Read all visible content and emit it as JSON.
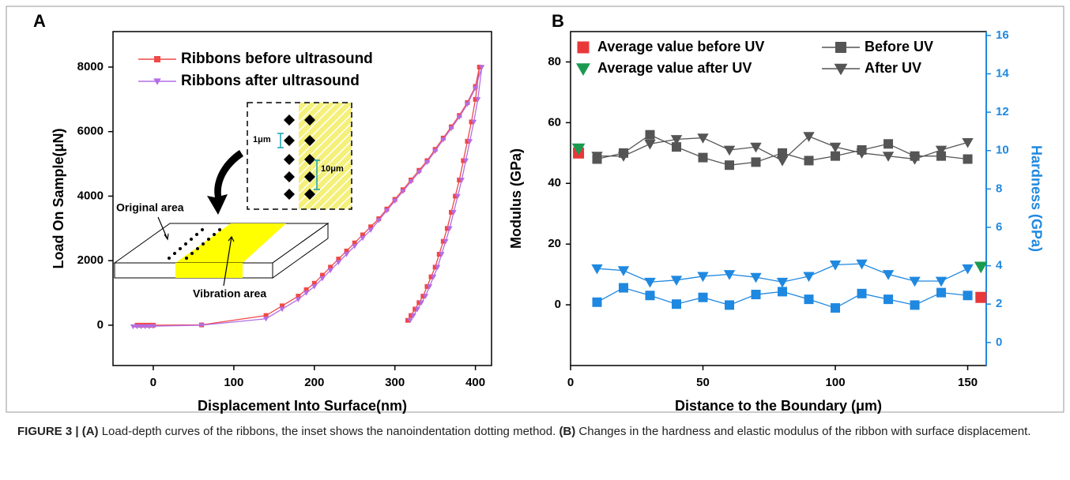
{
  "caption": [
    {
      "text": "FIGURE 3 | (A)",
      "bold": true
    },
    {
      "text": " Load-depth curves of the ribbons, the inset shows the nanoindentation dotting method. "
    },
    {
      "text": "(B)",
      "bold": true
    },
    {
      "text": " Changes in the hardness and elastic modulus of the ribbon with surface displacement."
    }
  ],
  "chart_data": [
    {
      "panel": "A",
      "type": "line",
      "xlabel": "Displacement Into Surface(nm)",
      "ylabel": "Load On Sample(μN)",
      "xlim": [
        -50,
        420
      ],
      "xticks": [
        0,
        100,
        200,
        300,
        400
      ],
      "ylim": [
        -1250,
        9100
      ],
      "yticks": [
        0,
        2000,
        4000,
        6000,
        8000
      ],
      "legend": "upper left",
      "legend_columns": 1,
      "series": [
        {
          "name": "Ribbons before ultrasound",
          "color": "#f04848",
          "marker": "square",
          "x": [
            -20,
            -15,
            -10,
            -5,
            0,
            60,
            140,
            160,
            180,
            190,
            200,
            210,
            220,
            230,
            240,
            250,
            260,
            270,
            280,
            290,
            300,
            310,
            320,
            330,
            340,
            350,
            360,
            370,
            380,
            390,
            400,
            405,
            400,
            395,
            390,
            385,
            380,
            375,
            370,
            365,
            360,
            355,
            350,
            345,
            340,
            335,
            330,
            325,
            320,
            316
          ],
          "values": [
            0,
            0,
            0,
            0,
            0,
            10,
            300,
            600,
            900,
            1100,
            1300,
            1550,
            1800,
            2050,
            2300,
            2550,
            2800,
            3050,
            3300,
            3600,
            3900,
            4200,
            4500,
            4800,
            5100,
            5450,
            5800,
            6150,
            6500,
            6900,
            7400,
            8000,
            7000,
            6300,
            5700,
            5100,
            4500,
            4000,
            3500,
            3000,
            2600,
            2200,
            1800,
            1500,
            1200,
            900,
            700,
            500,
            300,
            150
          ]
        },
        {
          "name": "Ribbons after ultrasound",
          "color": "#b36ee6",
          "marker": "triangle-down",
          "x": [
            -25,
            -20,
            -15,
            -10,
            -5,
            0,
            60,
            140,
            160,
            180,
            190,
            200,
            210,
            220,
            230,
            240,
            250,
            260,
            270,
            280,
            290,
            300,
            310,
            320,
            330,
            340,
            350,
            360,
            370,
            380,
            390,
            400,
            408,
            403,
            398,
            393,
            388,
            383,
            378,
            373,
            368,
            363,
            358,
            353,
            348,
            343,
            338,
            333,
            328,
            323,
            319
          ],
          "values": [
            -40,
            -40,
            -40,
            -40,
            -40,
            -30,
            0,
            200,
            500,
            800,
            1000,
            1200,
            1450,
            1700,
            1950,
            2200,
            2450,
            2700,
            2950,
            3250,
            3550,
            3850,
            4150,
            4450,
            4750,
            5050,
            5400,
            5750,
            6100,
            6450,
            6850,
            7350,
            8000,
            7000,
            6300,
            5700,
            5100,
            4500,
            4000,
            3500,
            3000,
            2600,
            2200,
            1800,
            1500,
            1200,
            900,
            700,
            500,
            300,
            150
          ]
        }
      ],
      "annotations": [
        "1μm",
        "10μm",
        "Original area",
        "Vibration area"
      ]
    },
    {
      "panel": "B",
      "type": "line",
      "xlabel": "Distance to the Boundary (μm)",
      "ylabel": "Modulus (GPa)",
      "y2label": "Hardness (GPa)",
      "y2color": "#1f88e0",
      "xlim": [
        0,
        157
      ],
      "xticks": [
        0,
        50,
        100,
        150
      ],
      "ylim": [
        -20,
        90
      ],
      "yticks": [
        0,
        20,
        40,
        60,
        80
      ],
      "y2lim": [
        -1.2,
        16.2
      ],
      "y2ticks": [
        0,
        2,
        4,
        6,
        8,
        10,
        12,
        14,
        16
      ],
      "legend": "upper left",
      "legend_columns": 2,
      "series": [
        {
          "name": "Average value before UV",
          "color": "#e8383a",
          "marker": "square",
          "line": false,
          "x": [
            3
          ],
          "values": [
            50
          ]
        },
        {
          "name": "Average value after UV",
          "color": "#1a9a50",
          "marker": "triangle-down",
          "line": false,
          "x": [
            3
          ],
          "values": [
            51.5
          ]
        },
        {
          "name": "Before UV",
          "color": "#555555",
          "marker": "square",
          "x": [
            10,
            20,
            30,
            40,
            50,
            60,
            70,
            80,
            90,
            100,
            110,
            120,
            130,
            140,
            150
          ],
          "values": [
            48,
            50,
            56,
            52,
            48.5,
            46,
            47,
            50,
            47.5,
            49,
            51,
            53,
            49,
            49,
            48
          ]
        },
        {
          "name": "After UV",
          "color": "#555555",
          "marker": "triangle-down",
          "x": [
            10,
            20,
            30,
            40,
            50,
            60,
            70,
            80,
            90,
            100,
            110,
            120,
            130,
            140,
            150
          ],
          "values": [
            49,
            49,
            53,
            54.5,
            55,
            51,
            52,
            47.5,
            55.5,
            52,
            50,
            49,
            48,
            51,
            53.5
          ]
        },
        {
          "color": "#1f88e0",
          "marker": "square",
          "axis": "y2",
          "x": [
            10,
            20,
            30,
            40,
            50,
            60,
            70,
            80,
            90,
            100,
            110,
            120,
            130,
            140,
            150
          ],
          "values": [
            2.1,
            2.85,
            2.45,
            2.0,
            2.35,
            1.95,
            2.5,
            2.65,
            2.25,
            1.8,
            2.55,
            2.25,
            1.95,
            2.6,
            2.45
          ]
        },
        {
          "color": "#1f88e0",
          "marker": "triangle-down",
          "axis": "y2",
          "x": [
            10,
            20,
            30,
            40,
            50,
            60,
            70,
            80,
            90,
            100,
            110,
            120,
            130,
            140,
            150
          ],
          "values": [
            3.85,
            3.75,
            3.15,
            3.25,
            3.45,
            3.55,
            3.4,
            3.15,
            3.45,
            4.05,
            4.1,
            3.55,
            3.2,
            3.2,
            3.85
          ]
        },
        {
          "color": "#e8383a",
          "marker": "square",
          "line": false,
          "axis": "y2",
          "x": [
            155
          ],
          "values": [
            2.35
          ]
        },
        {
          "color": "#1a9a50",
          "marker": "triangle-down",
          "line": false,
          "axis": "y2",
          "x": [
            155
          ],
          "values": [
            3.95
          ]
        }
      ]
    }
  ]
}
